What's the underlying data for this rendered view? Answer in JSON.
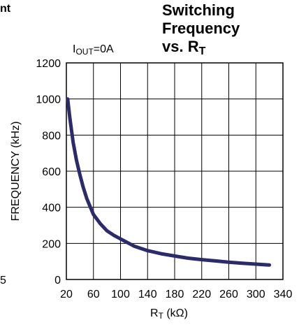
{
  "fragments": {
    "left_top": "nt",
    "left_bottom": "5"
  },
  "chart_data": {
    "type": "line",
    "title_line1": "Switching Frequency",
    "title_line2_prefix": "vs. R",
    "title_line2_sub": "T",
    "condition_prefix": "I",
    "condition_sub": "OUT",
    "condition_suffix": "=0A",
    "xlabel_prefix": "R",
    "xlabel_sub": "T",
    "xlabel_suffix": " (kΩ)",
    "ylabel": "FREQUENCY (kHz)",
    "xlim": [
      20,
      340
    ],
    "ylim": [
      0,
      1200
    ],
    "xticks": [
      "20",
      "60",
      "100",
      "140",
      "180",
      "220",
      "260",
      "300",
      "340"
    ],
    "yticks": [
      "0",
      "200",
      "400",
      "600",
      "800",
      "1000",
      "1200"
    ],
    "grid": true,
    "line_color": "#2b2b6b",
    "series": [
      {
        "x": [
          22,
          25,
          30,
          35,
          40,
          45,
          50,
          55,
          60,
          70,
          80,
          90,
          100,
          120,
          140,
          160,
          180,
          200,
          220,
          240,
          260,
          280,
          300,
          320
        ],
        "y": [
          1000,
          900,
          760,
          660,
          580,
          510,
          450,
          405,
          360,
          310,
          270,
          245,
          225,
          185,
          160,
          143,
          130,
          118,
          110,
          103,
          96,
          90,
          85,
          80
        ]
      }
    ]
  }
}
